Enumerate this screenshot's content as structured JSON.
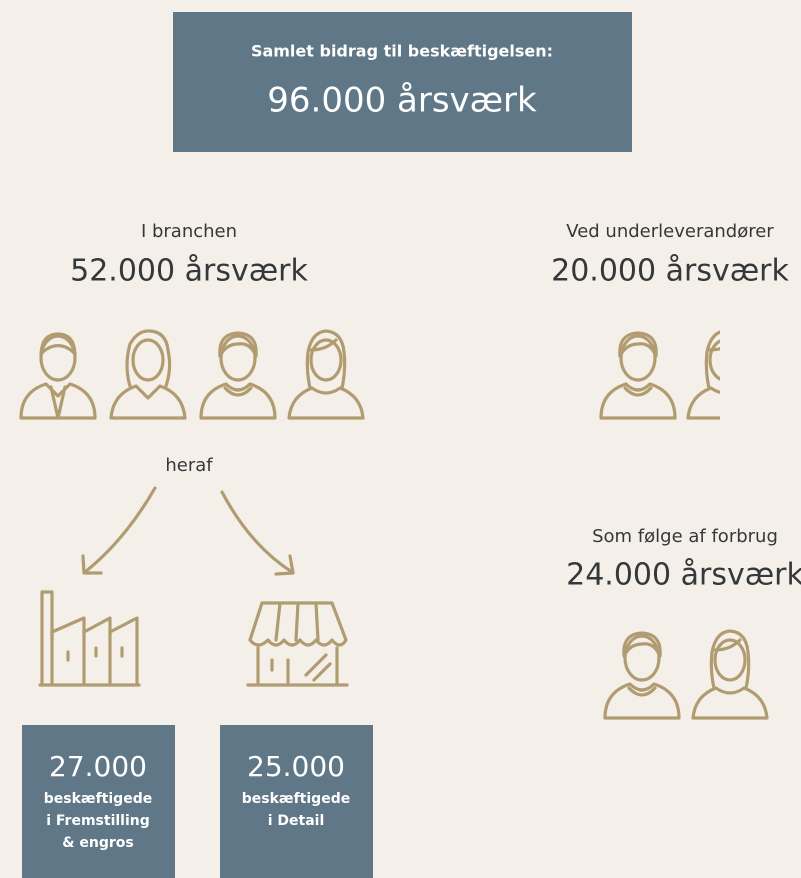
{
  "header": {
    "label": "Samlet bidrag til beskæftigelsen:",
    "value": "96.000 årsværk"
  },
  "groups": [
    {
      "label": "I branchen",
      "value": "52.000 årsværk"
    },
    {
      "label": "Ved underleverandører",
      "value": "20.000 årsværk"
    },
    {
      "label": "Som følge af forbrug",
      "value": "24.000 årsværk"
    }
  ],
  "split_label": "heraf",
  "boxes": [
    {
      "value": "27.000",
      "lines": [
        "beskæftigede",
        "i Fremstilling",
        "& engros"
      ]
    },
    {
      "value": "25.000",
      "lines": [
        "beskæftigede",
        "i Detail"
      ]
    }
  ]
}
